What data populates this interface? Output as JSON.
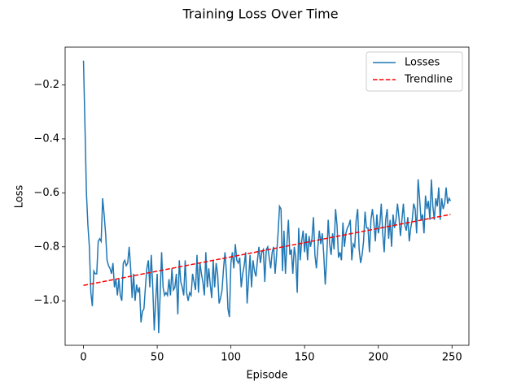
{
  "chart_data": {
    "type": "line",
    "title": "Training Loss Over Time",
    "x_label": "Episode",
    "y_label": "Loss",
    "xlim": [
      -12.45,
      261.45
    ],
    "ylim": [
      -1.165,
      -0.06
    ],
    "xticks": [
      0,
      50,
      100,
      150,
      200,
      250
    ],
    "yticks": [
      {
        "value": -1.0,
        "label": "−1.0"
      },
      {
        "value": -0.8,
        "label": "−0.8"
      },
      {
        "value": -0.6,
        "label": "−0.6"
      },
      {
        "value": -0.4,
        "label": "−0.4"
      },
      {
        "value": -0.2,
        "label": "−0.2"
      }
    ],
    "legend": "upper right",
    "series": [
      {
        "name": "Losses",
        "color": "#1f77b4",
        "style": "solid",
        "x": [
          0,
          1,
          2,
          3,
          4,
          5,
          6,
          7,
          8,
          9,
          10,
          11,
          12,
          13,
          14,
          15,
          16,
          17,
          18,
          19,
          20,
          21,
          22,
          23,
          24,
          25,
          26,
          27,
          28,
          29,
          30,
          31,
          32,
          33,
          34,
          35,
          36,
          37,
          38,
          39,
          40,
          41,
          42,
          43,
          44,
          45,
          46,
          47,
          48,
          49,
          50,
          51,
          52,
          53,
          54,
          55,
          56,
          57,
          58,
          59,
          60,
          61,
          62,
          63,
          64,
          65,
          66,
          67,
          68,
          69,
          70,
          71,
          72,
          73,
          74,
          75,
          76,
          77,
          78,
          79,
          80,
          81,
          82,
          83,
          84,
          85,
          86,
          87,
          88,
          89,
          90,
          91,
          92,
          93,
          94,
          95,
          96,
          97,
          98,
          99,
          100,
          101,
          102,
          103,
          104,
          105,
          106,
          107,
          108,
          109,
          110,
          111,
          112,
          113,
          114,
          115,
          116,
          117,
          118,
          119,
          120,
          121,
          122,
          123,
          124,
          125,
          126,
          127,
          128,
          129,
          130,
          131,
          132,
          133,
          134,
          135,
          136,
          137,
          138,
          139,
          140,
          141,
          142,
          143,
          144,
          145,
          146,
          147,
          148,
          149,
          150,
          151,
          152,
          153,
          154,
          155,
          156,
          157,
          158,
          159,
          160,
          161,
          162,
          163,
          164,
          165,
          166,
          167,
          168,
          169,
          170,
          171,
          172,
          173,
          174,
          175,
          176,
          177,
          178,
          179,
          180,
          181,
          182,
          183,
          184,
          185,
          186,
          187,
          188,
          189,
          190,
          191,
          192,
          193,
          194,
          195,
          196,
          197,
          198,
          199,
          200,
          201,
          202,
          203,
          204,
          205,
          206,
          207,
          208,
          209,
          210,
          211,
          212,
          213,
          214,
          215,
          216,
          217,
          218,
          219,
          220,
          221,
          222,
          223,
          224,
          225,
          226,
          227,
          228,
          229,
          230,
          231,
          232,
          233,
          234,
          235,
          236,
          237,
          238,
          239,
          240,
          241,
          242,
          243,
          244,
          245,
          246,
          247,
          248,
          249
        ],
        "values": [
          -0.11,
          -0.35,
          -0.6,
          -0.72,
          -0.8,
          -0.97,
          -1.02,
          -0.89,
          -0.9,
          -0.9,
          -0.78,
          -0.77,
          -0.78,
          -0.62,
          -0.68,
          -0.75,
          -0.85,
          -0.87,
          -0.88,
          -0.9,
          -0.86,
          -0.95,
          -0.92,
          -0.98,
          -0.92,
          -0.98,
          -1.0,
          -0.86,
          -0.85,
          -0.87,
          -0.86,
          -0.8,
          -0.88,
          -0.99,
          -0.9,
          -1.0,
          -0.94,
          -0.97,
          -0.95,
          -1.08,
          -1.04,
          -1.03,
          -0.95,
          -0.88,
          -0.85,
          -0.95,
          -0.83,
          -0.95,
          -1.11,
          -1.0,
          -0.9,
          -1.12,
          -0.98,
          -0.82,
          -0.95,
          -0.98,
          -0.97,
          -0.98,
          -0.92,
          -0.98,
          -0.88,
          -0.96,
          -0.95,
          -0.9,
          -1.05,
          -0.85,
          -0.93,
          -0.95,
          -0.98,
          -0.85,
          -0.97,
          -1.0,
          -0.97,
          -0.98,
          -0.9,
          -0.93,
          -0.96,
          -0.83,
          -0.97,
          -0.86,
          -0.9,
          -0.93,
          -0.98,
          -0.82,
          -0.95,
          -0.88,
          -0.94,
          -0.99,
          -0.85,
          -0.95,
          -0.86,
          -0.9,
          -1.01,
          -0.99,
          -0.96,
          -0.88,
          -0.82,
          -0.9,
          -1.03,
          -1.06,
          -0.86,
          -0.82,
          -0.88,
          -0.79,
          -0.85,
          -0.86,
          -0.84,
          -0.95,
          -0.9,
          -0.87,
          -0.82,
          -1.01,
          -0.92,
          -0.83,
          -0.95,
          -0.85,
          -0.89,
          -0.91,
          -0.85,
          -0.8,
          -0.86,
          -0.82,
          -0.81,
          -0.93,
          -0.81,
          -0.8,
          -0.84,
          -0.88,
          -0.82,
          -0.8,
          -0.9,
          -0.83,
          -0.75,
          -0.65,
          -0.66,
          -0.89,
          -0.74,
          -0.9,
          -0.79,
          -0.7,
          -0.83,
          -0.81,
          -0.9,
          -0.8,
          -0.84,
          -0.97,
          -0.73,
          -0.85,
          -0.78,
          -0.74,
          -0.82,
          -0.75,
          -0.85,
          -0.76,
          -0.8,
          -0.77,
          -0.69,
          -0.83,
          -0.88,
          -0.8,
          -0.74,
          -0.79,
          -0.75,
          -0.83,
          -0.94,
          -0.84,
          -0.7,
          -0.79,
          -0.83,
          -0.75,
          -0.81,
          -0.66,
          -0.72,
          -0.84,
          -0.82,
          -0.85,
          -0.71,
          -0.8,
          -0.75,
          -0.73,
          -0.72,
          -0.7,
          -0.85,
          -0.79,
          -0.8,
          -0.7,
          -0.66,
          -0.81,
          -0.86,
          -0.83,
          -0.78,
          -0.67,
          -0.73,
          -0.73,
          -0.82,
          -0.7,
          -0.66,
          -0.71,
          -0.78,
          -0.68,
          -0.75,
          -0.72,
          -0.64,
          -0.75,
          -0.82,
          -0.7,
          -0.66,
          -0.77,
          -0.7,
          -0.8,
          -0.68,
          -0.73,
          -0.7,
          -0.64,
          -0.69,
          -0.76,
          -0.7,
          -0.64,
          -0.72,
          -0.74,
          -0.69,
          -0.78,
          -0.73,
          -0.7,
          -0.64,
          -0.66,
          -0.75,
          -0.55,
          -0.62,
          -0.7,
          -0.68,
          -0.75,
          -0.61,
          -0.66,
          -0.63,
          -0.7,
          -0.55,
          -0.65,
          -0.7,
          -0.62,
          -0.65,
          -0.58,
          -0.7,
          -0.62,
          -0.66,
          -0.64,
          -0.58,
          -0.64,
          -0.62,
          -0.63
        ]
      },
      {
        "name": "Trendline",
        "color": "#ff0000",
        "style": "dashed",
        "x": [
          0,
          249
        ],
        "values": [
          -0.943,
          -0.68
        ]
      }
    ]
  }
}
